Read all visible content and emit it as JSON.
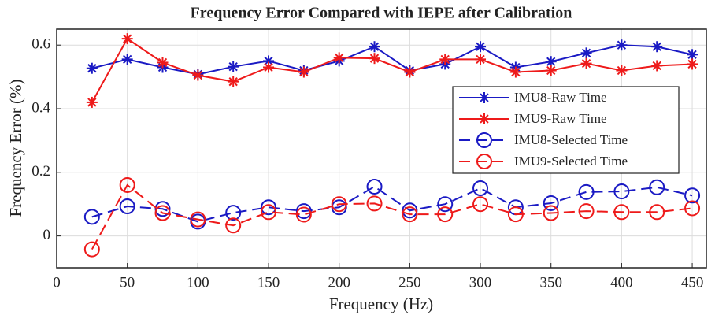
{
  "chart_data": {
    "type": "line",
    "title": "Frequency Error Compared with IEPE after Calibration",
    "xlabel": "Frequency (Hz)",
    "ylabel": "Frequency Error (%)",
    "x": [
      25,
      50,
      75,
      100,
      125,
      150,
      175,
      200,
      225,
      250,
      275,
      300,
      325,
      350,
      375,
      400,
      425,
      450
    ],
    "series": [
      {
        "name": "IMU8-Raw Time",
        "color": "#1a1ac4",
        "linestyle": "solid",
        "marker": "star",
        "values": [
          0.527,
          0.555,
          0.53,
          0.508,
          0.532,
          0.55,
          0.52,
          0.55,
          0.595,
          0.52,
          0.54,
          0.595,
          0.53,
          0.548,
          0.575,
          0.6,
          0.595,
          0.57
        ]
      },
      {
        "name": "IMU9-Raw Time",
        "color": "#ee1a1a",
        "linestyle": "solid",
        "marker": "star",
        "values": [
          0.42,
          0.62,
          0.545,
          0.505,
          0.485,
          0.53,
          0.515,
          0.56,
          0.558,
          0.515,
          0.555,
          0.555,
          0.515,
          0.52,
          0.542,
          0.52,
          0.535,
          0.54
        ]
      },
      {
        "name": "IMU8-Selected Time",
        "color": "#1a1ac4",
        "linestyle": "dashed",
        "marker": "circle",
        "values": [
          0.06,
          0.093,
          0.085,
          0.045,
          0.073,
          0.09,
          0.078,
          0.09,
          0.155,
          0.08,
          0.1,
          0.15,
          0.09,
          0.103,
          0.138,
          0.14,
          0.153,
          0.127
        ]
      },
      {
        "name": "IMU9-Selected Time",
        "color": "#ee1a1a",
        "linestyle": "dashed",
        "marker": "circle",
        "values": [
          -0.042,
          0.16,
          0.072,
          0.052,
          0.033,
          0.075,
          0.067,
          0.1,
          0.102,
          0.068,
          0.068,
          0.1,
          0.068,
          0.072,
          0.078,
          0.075,
          0.075,
          0.087
        ]
      }
    ],
    "xlim": [
      0,
      460
    ],
    "xticks": [
      0,
      50,
      100,
      150,
      200,
      250,
      300,
      350,
      400,
      450
    ],
    "ylim": [
      -0.1,
      0.65
    ],
    "yticks": [
      0,
      0.2,
      0.4,
      0.6
    ],
    "grid": true,
    "legend": "right"
  }
}
